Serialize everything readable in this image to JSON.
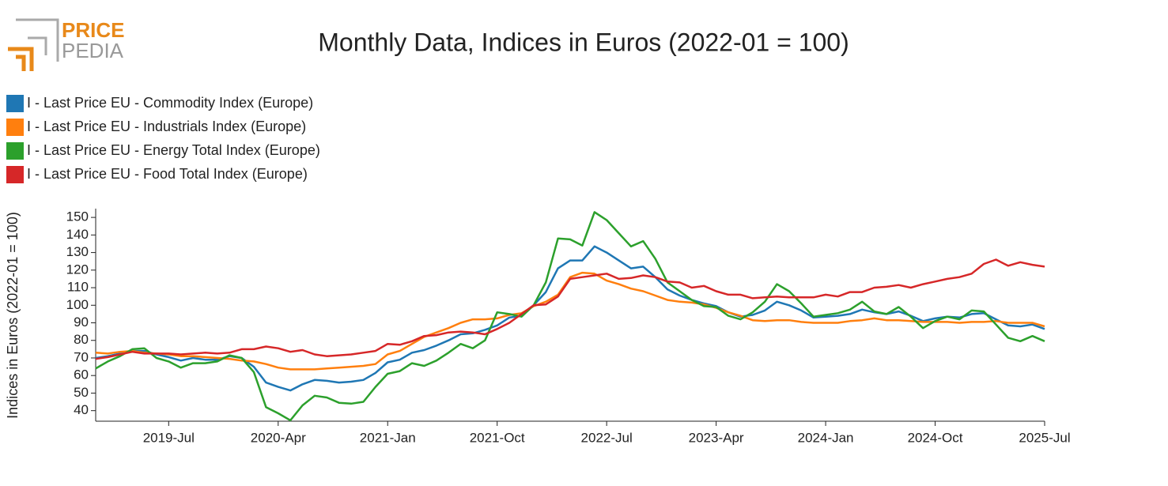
{
  "logo": {
    "top": "PRICE",
    "bottom": "PEDIA"
  },
  "chart_data": {
    "type": "line",
    "title": "Monthly Data, Indices in Euros (2022-01 = 100)",
    "y_label": "Indices in Euros (2022-01 = 100)",
    "x": [
      "2019-01",
      "2019-02",
      "2019-03",
      "2019-04",
      "2019-05",
      "2019-06",
      "2019-07",
      "2019-08",
      "2019-09",
      "2019-10",
      "2019-11",
      "2019-12",
      "2020-01",
      "2020-02",
      "2020-03",
      "2020-04",
      "2020-05",
      "2020-06",
      "2020-07",
      "2020-08",
      "2020-09",
      "2020-10",
      "2020-11",
      "2020-12",
      "2021-01",
      "2021-02",
      "2021-03",
      "2021-04",
      "2021-05",
      "2021-06",
      "2021-07",
      "2021-08",
      "2021-09",
      "2021-10",
      "2021-11",
      "2021-12",
      "2022-01",
      "2022-02",
      "2022-03",
      "2022-04",
      "2022-05",
      "2022-06",
      "2022-07",
      "2022-08",
      "2022-09",
      "2022-10",
      "2022-11",
      "2022-12",
      "2023-01",
      "2023-02",
      "2023-03",
      "2023-04",
      "2023-05",
      "2023-06",
      "2023-07",
      "2023-08",
      "2023-09",
      "2023-10",
      "2023-11",
      "2023-12",
      "2024-01",
      "2024-02",
      "2024-03",
      "2024-04",
      "2024-05",
      "2024-06",
      "2024-07",
      "2024-08",
      "2024-09",
      "2024-10",
      "2024-11",
      "2024-12",
      "2025-01",
      "2025-02",
      "2025-03",
      "2025-04",
      "2025-05",
      "2025-06",
      "2025-07"
    ],
    "xlim": [
      "2019-01",
      "2025-07"
    ],
    "xticks": [
      {
        "value": "2019-07",
        "label": "2019-Jul"
      },
      {
        "value": "2020-04",
        "label": "2020-Apr"
      },
      {
        "value": "2021-01",
        "label": "2021-Jan"
      },
      {
        "value": "2021-10",
        "label": "2021-Oct"
      },
      {
        "value": "2022-07",
        "label": "2022-Jul"
      },
      {
        "value": "2023-04",
        "label": "2023-Apr"
      },
      {
        "value": "2024-01",
        "label": "2024-Jan"
      },
      {
        "value": "2024-10",
        "label": "2024-Oct"
      },
      {
        "value": "2025-07",
        "label": "2025-Jul"
      }
    ],
    "ylim": [
      34,
      155
    ],
    "yticks": [
      40,
      50,
      60,
      70,
      80,
      90,
      100,
      110,
      120,
      130,
      140,
      150
    ],
    "grid": false,
    "legend": "top-left",
    "series": [
      {
        "name": "I - Last Price EU - Commodity Index (Europe)",
        "color": "#1f77b4",
        "values": [
          70,
          71,
          72.5,
          74,
          74,
          72,
          70.5,
          68.5,
          70,
          69,
          69,
          71,
          70,
          65,
          56,
          53.5,
          51.5,
          55,
          57.5,
          57,
          56,
          56.5,
          57.5,
          61.5,
          67.5,
          69,
          73,
          74.5,
          77,
          80,
          83.5,
          84,
          86,
          88.5,
          93,
          94,
          100,
          107.5,
          121,
          125.5,
          125.5,
          133.5,
          130,
          125.5,
          121,
          122,
          116,
          109,
          105.5,
          103,
          101,
          99.5,
          96,
          93.5,
          94.5,
          97,
          102,
          100,
          97,
          93,
          93.5,
          94,
          95,
          97.5,
          96,
          95,
          96.5,
          94,
          91,
          92.5,
          93.5,
          93,
          95,
          95.5,
          92,
          88.5,
          88,
          89,
          86.5
        ]
      },
      {
        "name": "I - Last Price EU - Industrials Index (Europe)",
        "color": "#ff7f0e",
        "values": [
          73,
          72.5,
          73.5,
          74,
          73,
          72.5,
          72,
          71,
          71,
          70.5,
          70,
          69.5,
          68.5,
          68,
          66.5,
          64.5,
          63.5,
          63.5,
          63.5,
          64,
          64.5,
          65,
          65.5,
          66.5,
          72,
          74,
          78,
          82,
          84.5,
          87,
          90,
          92,
          92,
          92.5,
          94.5,
          95.5,
          99.5,
          102,
          106,
          116,
          118.5,
          118,
          114,
          112,
          109.5,
          108,
          105.5,
          103,
          102,
          101.5,
          100.5,
          98.5,
          96,
          94,
          91.5,
          91,
          91.5,
          91.5,
          90.5,
          90,
          90,
          90,
          91,
          91.5,
          92.5,
          91.5,
          91.5,
          91,
          90.5,
          90.5,
          90.5,
          90,
          90.5,
          90.5,
          91,
          90,
          90,
          90,
          88
        ]
      },
      {
        "name": "I - Last Price EU - Energy Total Index (Europe)",
        "color": "#2ca02c",
        "values": [
          64,
          68,
          71,
          75,
          75.5,
          70,
          68,
          64.5,
          67,
          67,
          68,
          71.5,
          70,
          62,
          42,
          38.5,
          34.5,
          43,
          48.5,
          47.5,
          44.5,
          44,
          45,
          53.5,
          61,
          62.5,
          67,
          65.5,
          68.5,
          73,
          78,
          75.5,
          80,
          96,
          95,
          93.5,
          100,
          113,
          138,
          137.5,
          134,
          153,
          148.5,
          141,
          133.5,
          136.5,
          126.5,
          113,
          108,
          103,
          99.5,
          99,
          94,
          92,
          96,
          102,
          112,
          108,
          101,
          93.5,
          94.5,
          95.5,
          97.5,
          102,
          96.5,
          95,
          99,
          93.5,
          87,
          91,
          93.5,
          92,
          97,
          96.5,
          89,
          81.5,
          79.5,
          82.5,
          79.5
        ]
      },
      {
        "name": "I - Last Price EU - Food Total Index (Europe)",
        "color": "#d62728",
        "values": [
          69.5,
          70.5,
          72,
          73.5,
          72.5,
          72.5,
          72.5,
          72,
          72.5,
          73,
          72.5,
          73,
          75,
          75,
          76.5,
          75.5,
          73.5,
          74.5,
          72,
          71,
          71.5,
          72,
          73,
          74,
          78,
          77.5,
          79.5,
          82.5,
          83,
          84.5,
          85,
          84.5,
          83.5,
          86.5,
          90,
          95,
          100,
          100.5,
          105,
          115,
          116,
          117,
          118,
          115,
          115.5,
          117,
          116,
          113.5,
          113,
          110,
          111,
          108,
          106,
          106,
          104,
          104.5,
          105,
          104.5,
          104.5,
          104.5,
          106,
          105,
          107.5,
          107.5,
          110,
          110.5,
          111.5,
          110,
          112,
          113.5,
          115,
          116,
          118,
          123.5,
          126,
          122.5,
          124.5,
          123,
          122
        ]
      }
    ]
  }
}
